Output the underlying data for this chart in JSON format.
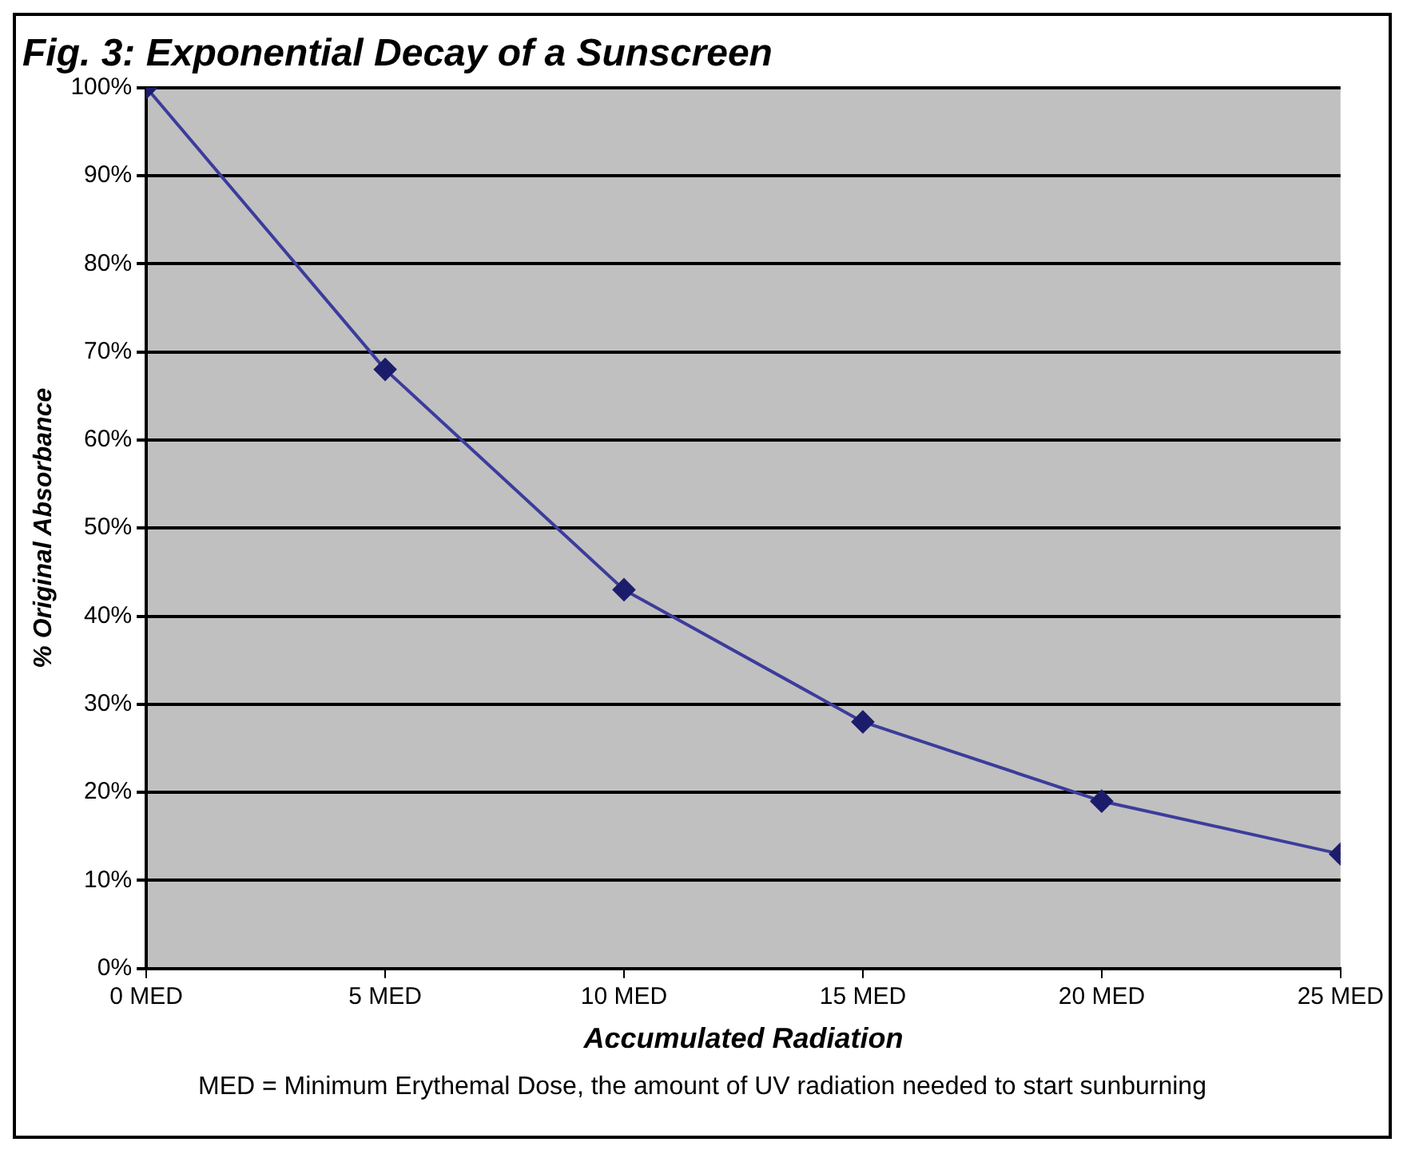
{
  "chart_data": {
    "type": "line",
    "title": "Fig. 3: Exponential Decay of a Sunscreen",
    "xlabel": "Accumulated Radiation",
    "ylabel": "% Original Absorbance",
    "x": [
      0,
      5,
      10,
      15,
      20,
      25
    ],
    "series": [
      {
        "color": "#3c3c9c",
        "values": [
          100,
          68,
          43,
          28,
          19,
          13
        ]
      }
    ],
    "xlim": [
      0,
      25
    ],
    "xticks": [
      {
        "value": 0,
        "label": "0 MED"
      },
      {
        "value": 5,
        "label": "5 MED"
      },
      {
        "value": 10,
        "label": "10 MED"
      },
      {
        "value": 15,
        "label": "15 MED"
      },
      {
        "value": 20,
        "label": "20 MED"
      },
      {
        "value": 25,
        "label": "25 MED"
      }
    ],
    "ylim": [
      0,
      100
    ],
    "yticks": [
      {
        "value": 0,
        "label": "0%"
      },
      {
        "value": 10,
        "label": "10%"
      },
      {
        "value": 20,
        "label": "20%"
      },
      {
        "value": 30,
        "label": "30%"
      },
      {
        "value": 40,
        "label": "40%"
      },
      {
        "value": 50,
        "label": "50%"
      },
      {
        "value": 60,
        "label": "60%"
      },
      {
        "value": 70,
        "label": "70%"
      },
      {
        "value": 80,
        "label": "80%"
      },
      {
        "value": 90,
        "label": "90%"
      },
      {
        "value": 100,
        "label": "100%"
      }
    ],
    "grid": "y",
    "legend": false,
    "marker": "diamond",
    "line_style": "solid",
    "annotations": [
      "MED = Minimum Erythemal Dose, the amount of UV radiation needed to start sunburning"
    ]
  }
}
